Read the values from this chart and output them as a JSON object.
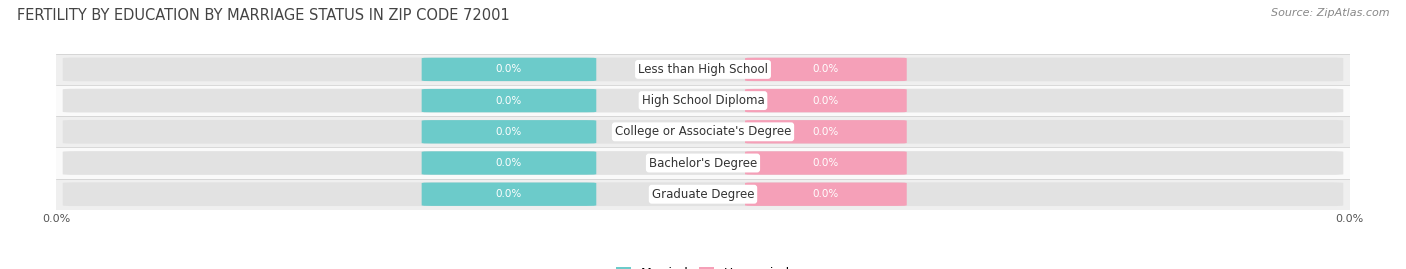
{
  "title": "FERTILITY BY EDUCATION BY MARRIAGE STATUS IN ZIP CODE 72001",
  "source": "Source: ZipAtlas.com",
  "categories": [
    "Less than High School",
    "High School Diploma",
    "College or Associate's Degree",
    "Bachelor's Degree",
    "Graduate Degree"
  ],
  "married_values": [
    0.0,
    0.0,
    0.0,
    0.0,
    0.0
  ],
  "unmarried_values": [
    0.0,
    0.0,
    0.0,
    0.0,
    0.0
  ],
  "married_color": "#6ccbca",
  "unmarried_color": "#f5a0b8",
  "bar_bg_color": "#e2e2e2",
  "row_bg_even": "#efefef",
  "row_bg_odd": "#fafafa",
  "title_color": "#444444",
  "source_color": "#888888",
  "category_label_color": "#333333",
  "title_fontsize": 10.5,
  "source_fontsize": 8,
  "bar_value_fontsize": 7.5,
  "category_fontsize": 8.5,
  "legend_fontsize": 9,
  "background_color": "#ffffff"
}
